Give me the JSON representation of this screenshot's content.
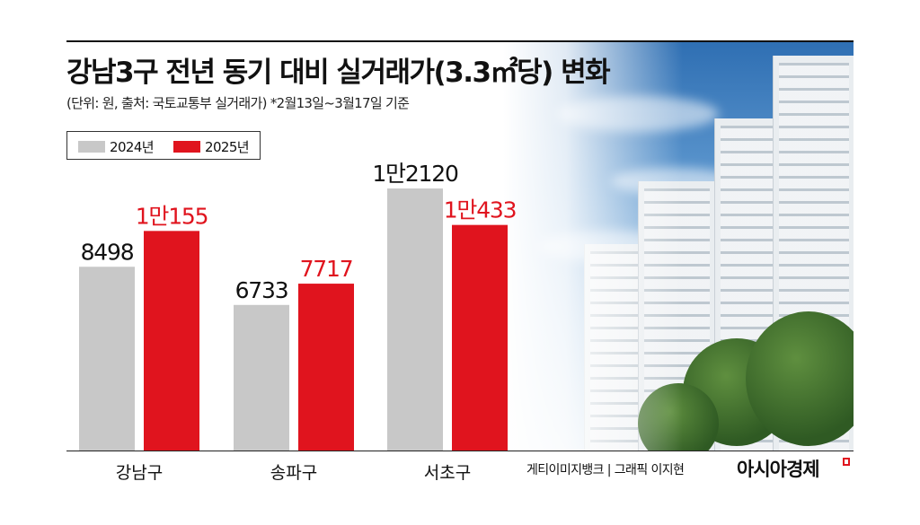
{
  "header": {
    "title": "강남3구 전년 동기 대비 실거래가(3.3㎡당) 변화",
    "subtitle": "(단위: 원, 출처: 국토교통부 실거래가)  *2월13일~3월17일 기준"
  },
  "footer": {
    "credit": "게티이미지뱅크 | 그래픽 이지현",
    "brand": "아시아경제"
  },
  "colors": {
    "series_2024": "#c8c8c8",
    "series_2025": "#e0141e",
    "label_2024": "#111111",
    "label_2025": "#e0141e"
  },
  "photo": {
    "description_icon": "apartment-photo"
  },
  "chart_data": {
    "type": "bar",
    "title": "강남3구 전년 동기 대비 실거래가(3.3㎡당) 변화",
    "categories": [
      "강남구",
      "송파구",
      "서초구"
    ],
    "series": [
      {
        "name": "2024년",
        "values": [
          8498,
          6733,
          12120
        ],
        "labels": [
          "8498",
          "6733",
          "1만2120"
        ]
      },
      {
        "name": "2025년",
        "values": [
          10155,
          7717,
          10433
        ],
        "labels": [
          "1만155",
          "7717",
          "1만433"
        ]
      }
    ],
    "ylim": [
      0,
      12120
    ],
    "grid": false,
    "legend": "top-left"
  }
}
